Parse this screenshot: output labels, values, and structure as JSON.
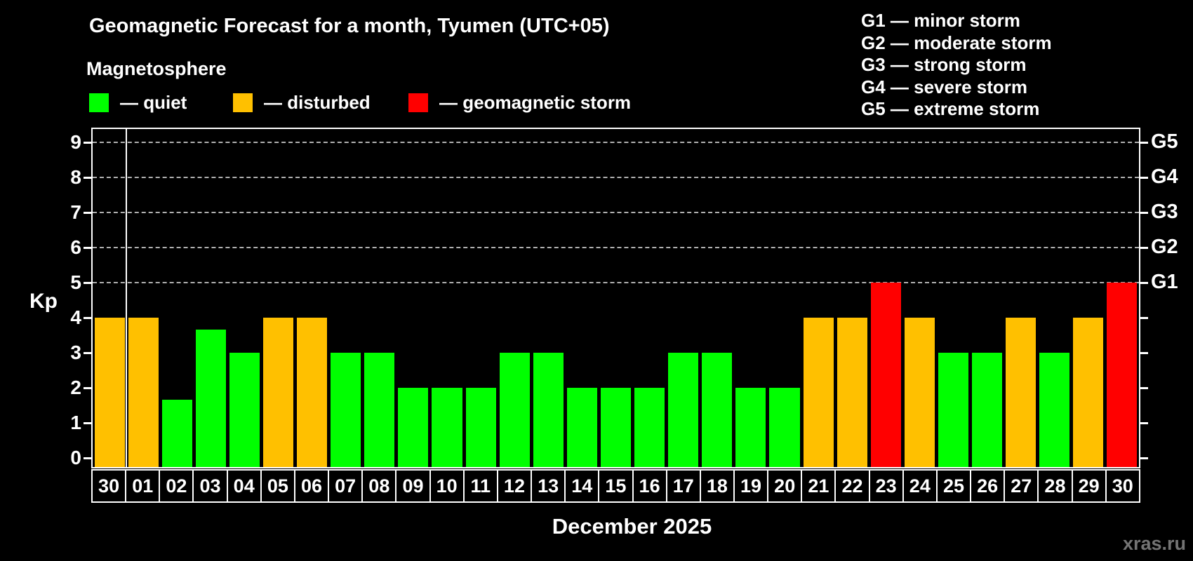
{
  "title": "Geomagnetic Forecast for a month, Tyumen (UTC+05)",
  "subtitle": "Magnetosphere",
  "legend": {
    "items": [
      {
        "status": "quiet",
        "label": "— quiet",
        "color": "#00ff00"
      },
      {
        "status": "disturbed",
        "label": "— disturbed",
        "color": "#ffc000"
      },
      {
        "status": "storm",
        "label": "— geomagnetic storm",
        "color": "#ff0000"
      }
    ]
  },
  "g_scale_legend": {
    "items": [
      "G1 — minor storm",
      "G2 — moderate storm",
      "G3 — strong storm",
      "G4 — severe storm",
      "G5 — extreme storm"
    ]
  },
  "footer": {
    "xlabel": "December 2025",
    "watermark": "xras.ru"
  },
  "chart_data": {
    "type": "bar",
    "title": "Geomagnetic Forecast for a month, Tyumen (UTC+05)",
    "ylabel": "Kp",
    "xlabel": "December 2025",
    "ylim": [
      0,
      9
    ],
    "y_ticks": [
      0,
      1,
      2,
      3,
      4,
      5,
      6,
      7,
      8,
      9
    ],
    "gridlines_at_kp": [
      5,
      6,
      7,
      8,
      9
    ],
    "grid": "dashed horizontal lines only at Kp 5-9 (G1-G5 levels)",
    "legend_position": "top-left swatches; G-scale list top-right",
    "right_axis_labels": [
      {
        "kp": 5,
        "label": "G1"
      },
      {
        "kp": 6,
        "label": "G2"
      },
      {
        "kp": 7,
        "label": "G3"
      },
      {
        "kp": 8,
        "label": "G4"
      },
      {
        "kp": 9,
        "label": "G5"
      }
    ],
    "status_colors": {
      "quiet": "#00ff00",
      "disturbed": "#ffc000",
      "storm": "#ff0000"
    },
    "separator_after_index": 0,
    "categories": [
      "30",
      "01",
      "02",
      "03",
      "04",
      "05",
      "06",
      "07",
      "08",
      "09",
      "10",
      "11",
      "12",
      "13",
      "14",
      "15",
      "16",
      "17",
      "18",
      "19",
      "20",
      "21",
      "22",
      "23",
      "24",
      "25",
      "26",
      "27",
      "28",
      "29",
      "30"
    ],
    "values": [
      4,
      4,
      1.67,
      3.67,
      3,
      4,
      4,
      3,
      3,
      2,
      2,
      2,
      3,
      3,
      2,
      2,
      2,
      3,
      3,
      2,
      2,
      4,
      4,
      5,
      4,
      3,
      3,
      4,
      3,
      4,
      5
    ],
    "statuses": [
      "disturbed",
      "disturbed",
      "quiet",
      "quiet",
      "quiet",
      "disturbed",
      "disturbed",
      "quiet",
      "quiet",
      "quiet",
      "quiet",
      "quiet",
      "quiet",
      "quiet",
      "quiet",
      "quiet",
      "quiet",
      "quiet",
      "quiet",
      "quiet",
      "quiet",
      "disturbed",
      "disturbed",
      "storm",
      "disturbed",
      "quiet",
      "quiet",
      "disturbed",
      "quiet",
      "disturbed",
      "storm"
    ]
  }
}
